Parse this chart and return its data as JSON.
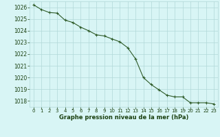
{
  "x": [
    0,
    1,
    2,
    3,
    4,
    5,
    6,
    7,
    8,
    9,
    10,
    11,
    12,
    13,
    14,
    15,
    16,
    17,
    18,
    19,
    20,
    21,
    22,
    23
  ],
  "y": [
    1026.2,
    1025.8,
    1025.55,
    1025.5,
    1024.9,
    1024.7,
    1024.3,
    1024.0,
    1023.65,
    1023.55,
    1023.3,
    1023.05,
    1022.55,
    1021.6,
    1020.0,
    1019.4,
    1018.95,
    1018.5,
    1018.35,
    1018.35,
    1017.85,
    1017.85,
    1017.85,
    1017.75
  ],
  "line_color": "#2d5a27",
  "marker": "+",
  "marker_size": 3.5,
  "bg_color": "#d8f5f5",
  "grid_color": "#b0d8d8",
  "xlabel": "Graphe pression niveau de la mer (hPa)",
  "xlabel_color": "#1a4010",
  "tick_color": "#1a4010",
  "ylim": [
    1017.5,
    1026.5
  ],
  "xlim": [
    -0.5,
    23.5
  ],
  "yticks": [
    1018,
    1019,
    1020,
    1021,
    1022,
    1023,
    1024,
    1025,
    1026
  ],
  "xticks": [
    0,
    1,
    2,
    3,
    4,
    5,
    6,
    7,
    8,
    9,
    10,
    11,
    12,
    13,
    14,
    15,
    16,
    17,
    18,
    19,
    20,
    21,
    22,
    23
  ],
  "line_width": 0.8,
  "marker_edge_width": 0.8,
  "xlabel_fontsize": 6.0,
  "ytick_fontsize": 5.5,
  "xtick_fontsize": 5.0
}
